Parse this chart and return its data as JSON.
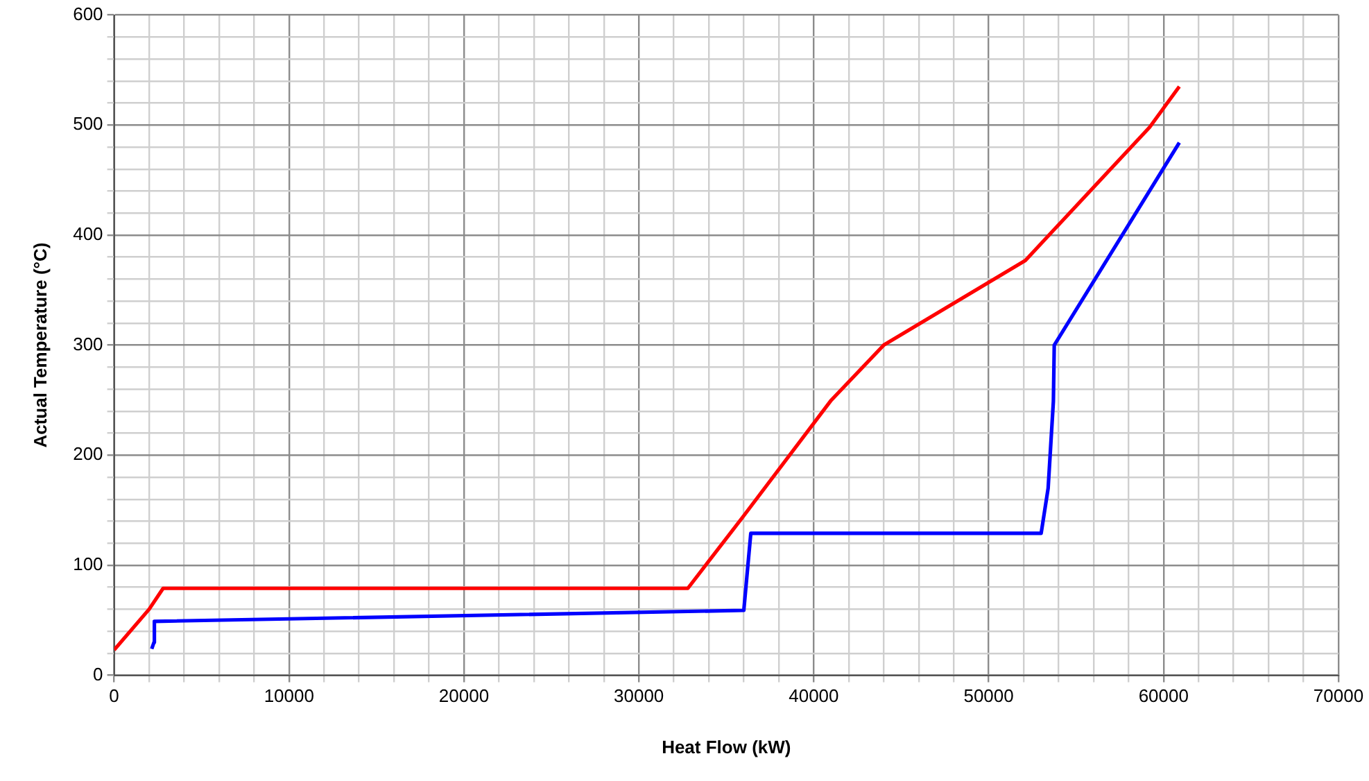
{
  "chart_data": {
    "type": "line",
    "xlabel": "Heat Flow (kW)",
    "ylabel": "Actual Temperature (°C)",
    "xlim": [
      0,
      70000
    ],
    "ylim": [
      0,
      600
    ],
    "xticks": [
      0,
      {
        "value": 2000,
        "label": null
      },
      {
        "value": 4000,
        "label": null
      },
      {
        "value": 6000,
        "label": null
      },
      {
        "value": 8000,
        "label": null
      },
      10000,
      {
        "value": 12000,
        "label": null
      },
      {
        "value": 14000,
        "label": null
      },
      {
        "value": 16000,
        "label": null
      },
      {
        "value": 18000,
        "label": null
      },
      20000,
      {
        "value": 22000,
        "label": null
      },
      {
        "value": 24000,
        "label": null
      },
      {
        "value": 26000,
        "label": null
      },
      {
        "value": 28000,
        "label": null
      },
      30000,
      {
        "value": 32000,
        "label": null
      },
      {
        "value": 34000,
        "label": null
      },
      {
        "value": 36000,
        "label": null
      },
      {
        "value": 38000,
        "label": null
      },
      40000,
      {
        "value": 42000,
        "label": null
      },
      {
        "value": 44000,
        "label": null
      },
      {
        "value": 46000,
        "label": null
      },
      {
        "value": 48000,
        "label": null
      },
      50000,
      {
        "value": 52000,
        "label": null
      },
      {
        "value": 54000,
        "label": null
      },
      {
        "value": 56000,
        "label": null
      },
      {
        "value": 58000,
        "label": null
      },
      60000,
      {
        "value": 62000,
        "label": null
      },
      {
        "value": 64000,
        "label": null
      },
      {
        "value": 66000,
        "label": null
      },
      {
        "value": 68000,
        "label": null
      },
      70000
    ],
    "yticks": [
      0,
      {
        "value": 20,
        "label": null
      },
      {
        "value": 40,
        "label": null
      },
      {
        "value": 60,
        "label": null
      },
      {
        "value": 80,
        "label": null
      },
      100,
      {
        "value": 120,
        "label": null
      },
      {
        "value": 140,
        "label": null
      },
      {
        "value": 160,
        "label": null
      },
      {
        "value": 180,
        "label": null
      },
      200,
      {
        "value": 220,
        "label": null
      },
      {
        "value": 240,
        "label": null
      },
      {
        "value": 260,
        "label": null
      },
      {
        "value": 280,
        "label": null
      },
      300,
      {
        "value": 320,
        "label": null
      },
      {
        "value": 340,
        "label": null
      },
      {
        "value": 360,
        "label": null
      },
      {
        "value": 380,
        "label": null
      },
      400,
      {
        "value": 420,
        "label": null
      },
      {
        "value": 440,
        "label": null
      },
      {
        "value": 460,
        "label": null
      },
      {
        "value": 480,
        "label": null
      },
      500,
      {
        "value": 520,
        "label": null
      },
      {
        "value": 540,
        "label": null
      },
      {
        "value": 560,
        "label": null
      },
      {
        "value": 580,
        "label": null
      },
      600
    ],
    "grid": true,
    "legend": false,
    "marker": "none",
    "line_style": "solid",
    "series": [
      {
        "color": "#ff0000",
        "x": [
          0,
          2000,
          2800,
          32800,
          36000,
          41000,
          44000,
          52100,
          59200,
          60900
        ],
        "values": [
          23,
          60,
          79,
          79,
          145,
          250,
          300,
          377,
          498,
          535
        ]
      },
      {
        "color": "#0000ff",
        "x": [
          2150,
          2280,
          2300,
          36000,
          36400,
          53000,
          53400,
          53700,
          53750,
          60900
        ],
        "values": [
          24,
          30,
          49,
          59,
          129,
          129,
          170,
          249,
          300,
          484
        ]
      }
    ]
  }
}
